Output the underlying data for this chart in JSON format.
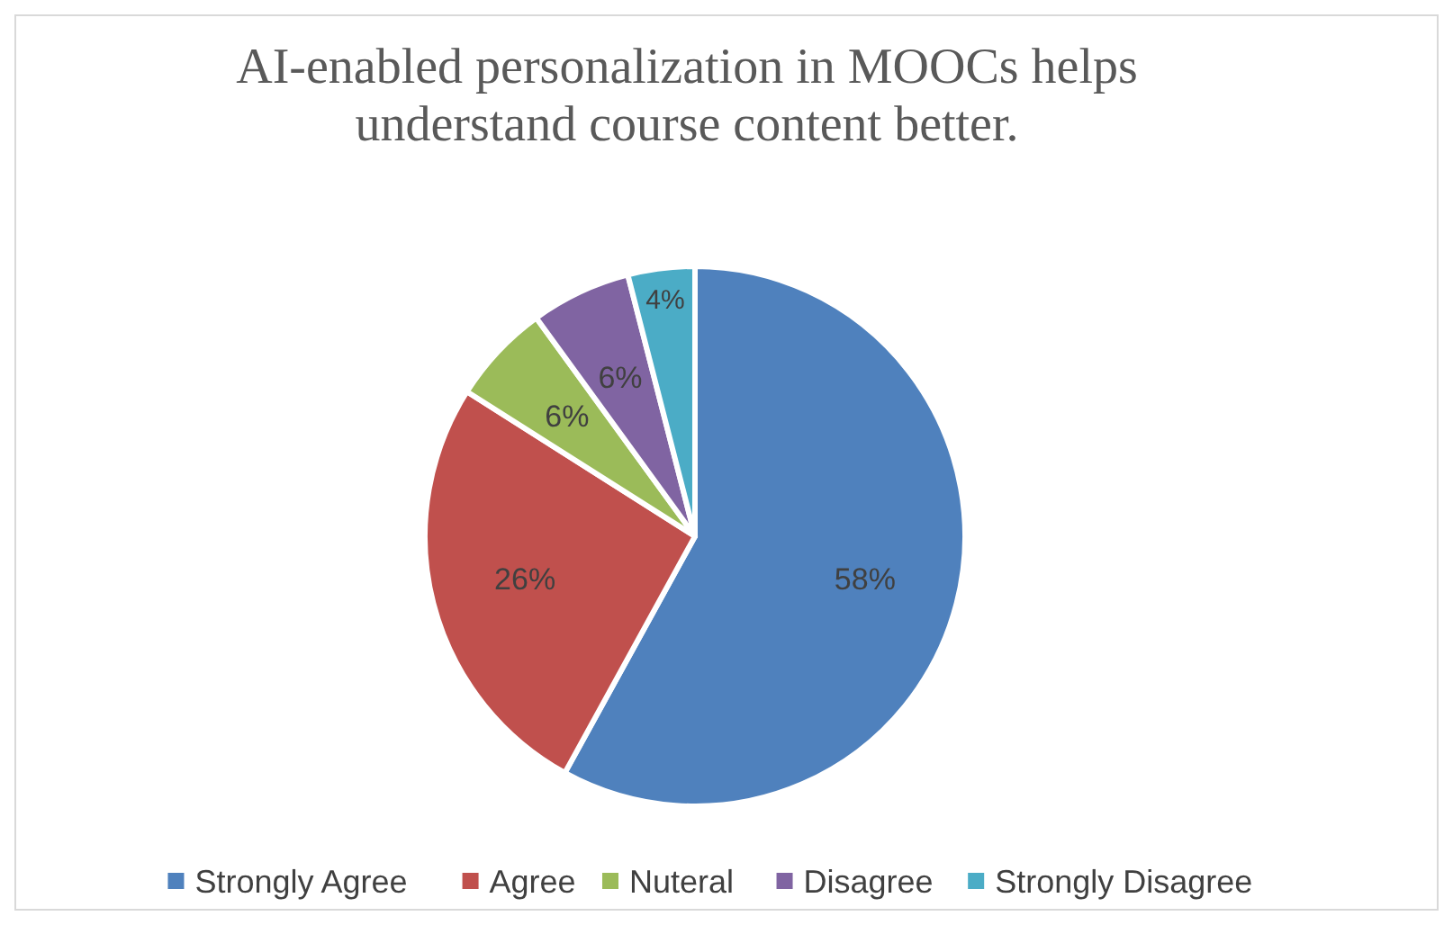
{
  "chart_data": {
    "type": "pie",
    "title": "AI-enabled personalization in MOOCs helps understand course content better.",
    "categories": [
      "Strongly Agree",
      "Agree",
      "Nuteral",
      "Disagree",
      "Strongly Disagree"
    ],
    "values": [
      58,
      26,
      6,
      6,
      4
    ],
    "colors": [
      "#4f81bd",
      "#c0504d",
      "#9bbb59",
      "#8064a2",
      "#4bacc6"
    ],
    "value_labels": [
      "58%",
      "26%",
      "6%",
      "6%",
      "4%"
    ],
    "legend": "bottom"
  }
}
